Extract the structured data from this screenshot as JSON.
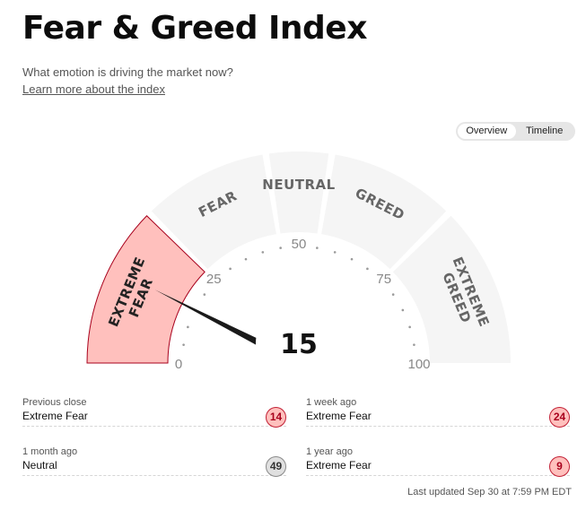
{
  "header": {
    "title": "Fear & Greed Index",
    "subtitle": "What emotion is driving the market now?",
    "learn_link": "Learn more about the index"
  },
  "view_toggle": {
    "options": [
      "Overview",
      "Timeline"
    ],
    "selected": "Overview"
  },
  "gauge": {
    "score": 15,
    "min": 0,
    "max": 100,
    "tick_labels": [
      "0",
      "25",
      "50",
      "75",
      "100"
    ],
    "segments": [
      {
        "lines": [
          "EXTREME",
          "FEAR"
        ],
        "from": 0,
        "to": 25,
        "active": true
      },
      {
        "lines": [
          "FEAR"
        ],
        "from": 25,
        "to": 45,
        "active": false
      },
      {
        "lines": [
          "NEUTRAL"
        ],
        "from": 45,
        "to": 55,
        "active": false
      },
      {
        "lines": [
          "GREED"
        ],
        "from": 55,
        "to": 75,
        "active": false
      },
      {
        "lines": [
          "EXTREME",
          "GREED"
        ],
        "from": 75,
        "to": 100,
        "active": false
      }
    ],
    "colors": {
      "active_fill": "#ffc0bd",
      "active_stroke": "#a8001c",
      "inactive_fill": "#f5f5f5",
      "needle": "#1a1a1a"
    }
  },
  "stats": {
    "previous_close": {
      "label": "Previous close",
      "rating": "Extreme Fear",
      "score": "14"
    },
    "one_week_ago": {
      "label": "1 week ago",
      "rating": "Extreme Fear",
      "score": "24"
    },
    "one_month_ago": {
      "label": "1 month ago",
      "rating": "Neutral",
      "score": "49"
    },
    "one_year_ago": {
      "label": "1 year ago",
      "rating": "Extreme Fear",
      "score": "9"
    }
  },
  "badge_colors": {
    "fear": {
      "bg": "#ffc0bd",
      "border": "#c21f34",
      "text": "#a8001c"
    },
    "neutral": {
      "bg": "#e0e0e0",
      "border": "#8a8a8a",
      "text": "#333333"
    }
  },
  "last_updated": "Last updated Sep 30 at 7:59 PM EDT"
}
